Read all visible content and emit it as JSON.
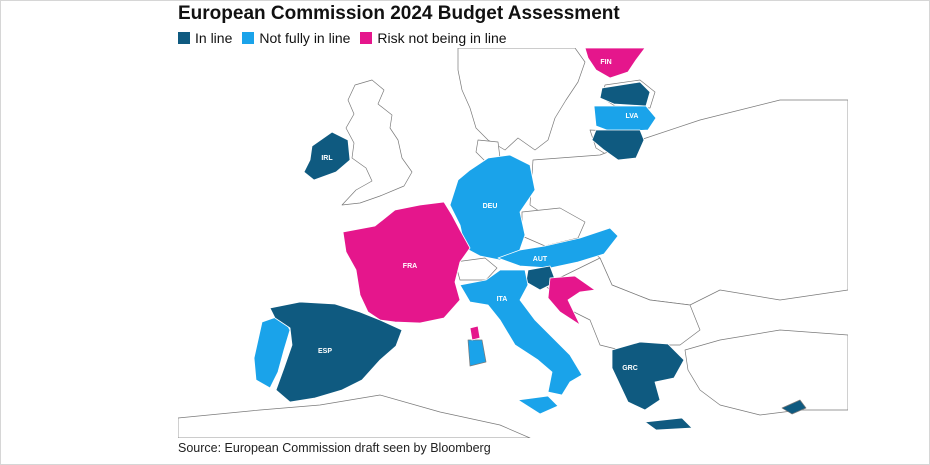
{
  "title": "European Commission 2024 Budget Assessment",
  "legend": [
    {
      "label": "In line",
      "color": "#0f5a80"
    },
    {
      "label": "Not fully in line",
      "color": "#1aa3ea"
    },
    {
      "label": "Risk not being in line",
      "color": "#e5168c"
    }
  ],
  "colors": {
    "in_line": "#0f5a80",
    "not_fully": "#1aa3ea",
    "risk": "#e5168c",
    "other_fill": "#ffffff",
    "border": "#7a7a7a"
  },
  "countries": [
    {
      "code": "FIN",
      "status": "Risk not being in line"
    },
    {
      "code": "LVA",
      "status": "Not fully in line"
    },
    {
      "code": "IRL",
      "status": "In line"
    },
    {
      "code": "DEU",
      "status": "Not fully in line"
    },
    {
      "code": "FRA",
      "status": "Risk not being in line"
    },
    {
      "code": "AUT",
      "status": "Not fully in line"
    },
    {
      "code": "ITA",
      "status": "Not fully in line"
    },
    {
      "code": "ESP",
      "status": "In line"
    },
    {
      "code": "GRC",
      "status": "In line"
    }
  ],
  "source": "Source: European Commission draft seen by Bloomberg"
}
